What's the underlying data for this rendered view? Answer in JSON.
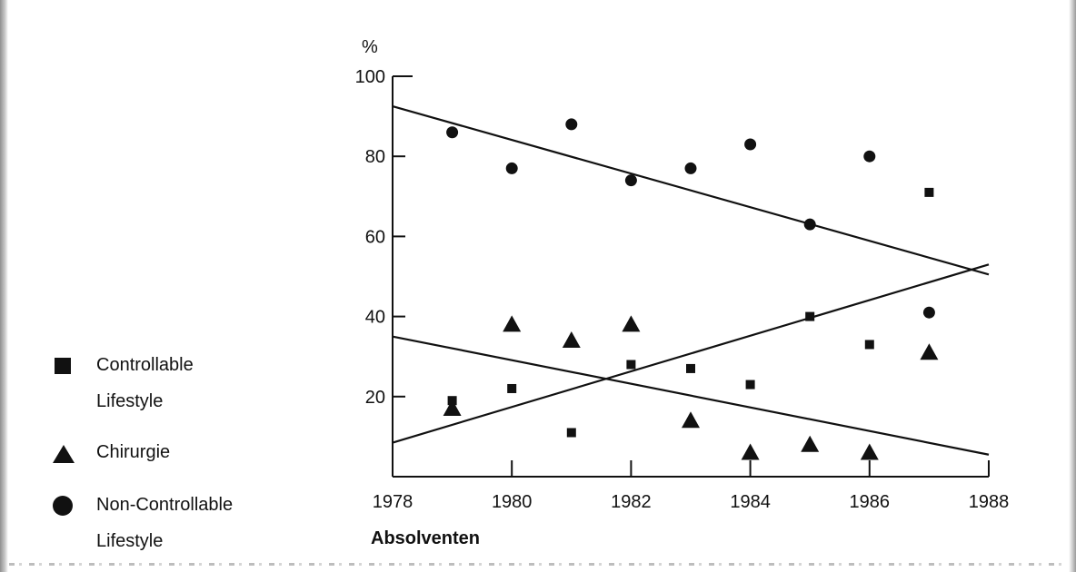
{
  "chart_data": {
    "type": "scatter",
    "title": "",
    "xlabel": "Absolventen",
    "ylabel": "%",
    "xlim": [
      1978,
      1988
    ],
    "ylim": [
      0,
      100
    ],
    "x_ticks": [
      "1978",
      "1980",
      "1982",
      "1984",
      "1986",
      "1988"
    ],
    "y_ticks": [
      "100",
      "80",
      "60",
      "40",
      "20"
    ],
    "grid": false,
    "legend_position": "left",
    "series": [
      {
        "name": "Controllable Lifestyle",
        "marker": "square",
        "x": [
          1979,
          1980,
          1981,
          1982,
          1983,
          1984,
          1985,
          1986,
          1987
        ],
        "y": [
          19,
          22,
          11,
          28,
          27,
          23,
          40,
          33,
          71
        ]
      },
      {
        "name": "Chirurgie",
        "marker": "triangle",
        "x": [
          1979,
          1980,
          1981,
          1982,
          1983,
          1984,
          1985,
          1986,
          1987
        ],
        "y": [
          17,
          38,
          34,
          38,
          14,
          6,
          8,
          6,
          31
        ]
      },
      {
        "name": "Non-Controllable Lifestyle",
        "marker": "circle",
        "x": [
          1979,
          1980,
          1981,
          1982,
          1983,
          1984,
          1985,
          1986,
          1987
        ],
        "y": [
          86,
          77,
          88,
          74,
          77,
          83,
          63,
          80,
          41
        ]
      }
    ],
    "trend_lines": [
      {
        "series": "Non-Controllable Lifestyle",
        "x": [
          1978,
          1988
        ],
        "y": [
          92.5,
          50.5
        ]
      },
      {
        "series": "Controllable Lifestyle",
        "x": [
          1978,
          1988
        ],
        "y": [
          8.5,
          53
        ]
      },
      {
        "series": "Chirurgie",
        "x": [
          1978,
          1988
        ],
        "y": [
          35,
          5.5
        ]
      }
    ]
  },
  "legend": [
    {
      "label_line1": "Controllable",
      "label_line2": "Lifestyle",
      "marker": "square"
    },
    {
      "label_line1": "Chirurgie",
      "label_line2": "",
      "marker": "triangle"
    },
    {
      "label_line1": "Non-Controllable",
      "label_line2": "Lifestyle",
      "marker": "circle"
    }
  ],
  "colors": {
    "ink": "#111111",
    "background": "#ffffff"
  }
}
